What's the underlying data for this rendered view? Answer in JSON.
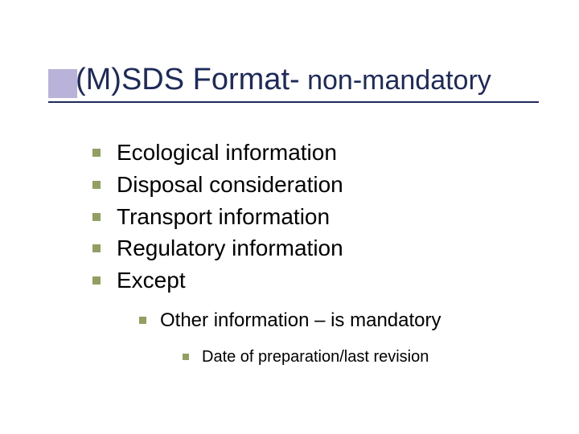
{
  "colors": {
    "title_text": "#1e2a5a",
    "title_square": "#b9b3d9",
    "title_underline": "#1e2a5a",
    "bullet": "#8fa060",
    "body_text": "#000000",
    "background": "#ffffff"
  },
  "typography": {
    "font_family": "Verdana",
    "title_main_size_pt": 38,
    "title_sub_size_pt": 34,
    "lvl1_size_pt": 28,
    "lvl2_size_pt": 24,
    "lvl3_size_pt": 20
  },
  "title": {
    "main": "(M)SDS Format-",
    "sub": " non-mandatory"
  },
  "bullets": {
    "lvl1": [
      "Ecological information",
      "Disposal consideration",
      "Transport information",
      "Regulatory information",
      "Except"
    ],
    "lvl2": [
      "Other information – is mandatory"
    ],
    "lvl3": [
      "Date of preparation/last revision"
    ]
  }
}
